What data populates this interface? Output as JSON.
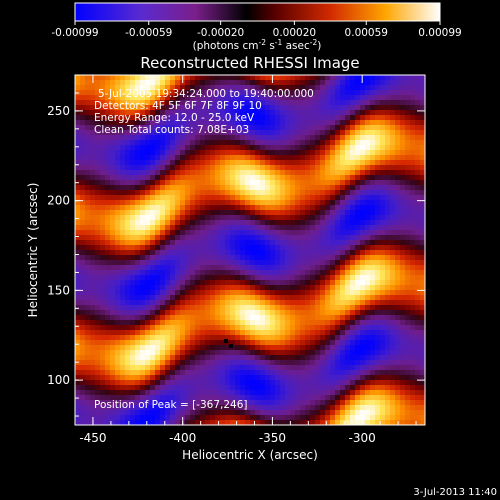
{
  "title": "Reconstructed RHESSI Image",
  "colorbar": {
    "ticks": [
      "-0.00099",
      "-0.00059",
      "-0.00020",
      "0.00020",
      "0.00059",
      "0.00099"
    ],
    "tick_values": [
      -0.00099,
      -0.00059,
      -0.0002,
      0.0002,
      0.00059,
      0.00099
    ],
    "range": [
      -0.00099,
      0.00099
    ],
    "unit_main": "(photons cm",
    "unit_exp1": "-2",
    "unit_mid": " s",
    "unit_exp2": "-1",
    "unit_end": " asec",
    "unit_exp3": "-2",
    "unit_close": ")",
    "colors": [
      "#0000ff",
      "#6a22c8",
      "#7a1f8a",
      "#000000",
      "#8a0000",
      "#e63c00",
      "#ffb000",
      "#ffffff"
    ]
  },
  "annotations": {
    "time": "5-Jul-2005 19:34:24.000 to 19:40:00.000",
    "detectors": "Detectors: 4F 5F 6F 7F 8F 9F 10",
    "energy": "Energy Range: 12.0 - 25.0 keV",
    "clean": "Clean     Total counts: 7.08E+03",
    "peak": "Position of Peak = [-367,246]"
  },
  "footer_date": "3-Jul-2013 11:40",
  "chart_data": {
    "type": "heatmap",
    "title": "Reconstructed RHESSI Image",
    "xlabel": "Heliocentric X (arcsec)",
    "ylabel": "Heliocentric Y (arcsec)",
    "xlim": [
      -460,
      -265
    ],
    "ylim": [
      75,
      270
    ],
    "xticks": [
      -450,
      -400,
      -350,
      -300
    ],
    "yticks": [
      100,
      150,
      200,
      250
    ],
    "xtick_labels": [
      "-450",
      "-400",
      "-350",
      "-300"
    ],
    "ytick_labels": [
      "100",
      "150",
      "200",
      "250"
    ],
    "peak": [
      -367,
      246
    ],
    "value_range": [
      -0.00099,
      0.00099
    ],
    "pattern": {
      "period_y": 75,
      "slope": 0.22,
      "wave_amp": 8,
      "wave_period": 90
    }
  }
}
